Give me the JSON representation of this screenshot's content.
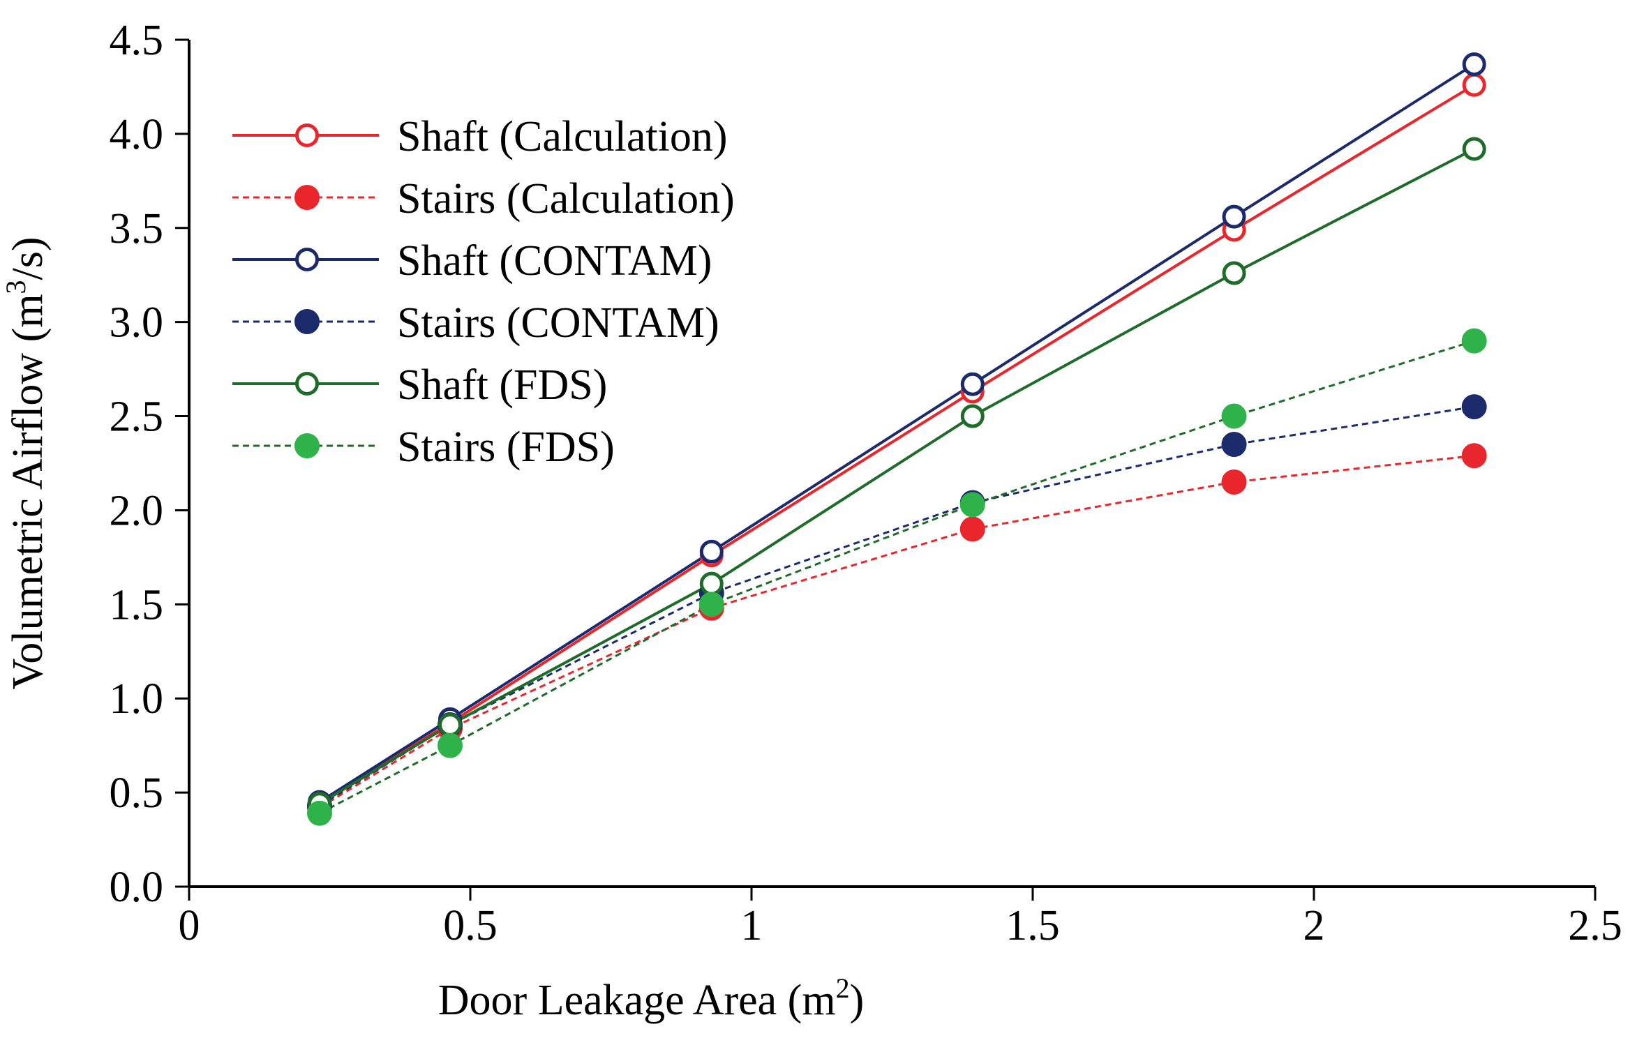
{
  "chart_data": {
    "type": "line",
    "title": "",
    "xlabel": "Door Leakage Area (m",
    "xlabel_sup": "2",
    "xlabel_end": ")",
    "ylabel": "Volumetric Airflow (m",
    "ylabel_sup": "3",
    "ylabel_end": "/s)",
    "xlim": [
      0,
      2.5
    ],
    "ylim": [
      0,
      4.5
    ],
    "xticks": [
      0,
      0.5,
      1,
      1.5,
      2,
      2.5
    ],
    "xtick_labels": [
      "0",
      "0.5",
      "1",
      "1.5",
      "2",
      "2.5"
    ],
    "yticks": [
      0,
      0.5,
      1,
      1.5,
      2,
      2.5,
      3,
      3.5,
      4,
      4.5
    ],
    "ytick_labels": [
      "0.0",
      "0.5",
      "1.0",
      "1.5",
      "2.0",
      "2.5",
      "3.0",
      "3.5",
      "4.0",
      "4.5"
    ],
    "grid": false,
    "legend_position": "top-left",
    "x": [
      0.232,
      0.464,
      0.929,
      1.393,
      1.858,
      2.285
    ],
    "series": [
      {
        "name": "Shaft (Calculation)",
        "color": "#e8262c",
        "dashed": false,
        "filled": false,
        "values": [
          0.44,
          0.87,
          1.76,
          2.63,
          3.49,
          4.26
        ]
      },
      {
        "name": "Stairs (Calculation)",
        "color": "#e8262c",
        "dashed": true,
        "filled": true,
        "values": [
          0.42,
          0.84,
          1.48,
          1.9,
          2.15,
          2.29
        ]
      },
      {
        "name": "Shaft (CONTAM)",
        "color": "#1b2a6b",
        "dashed": false,
        "filled": false,
        "values": [
          0.45,
          0.89,
          1.78,
          2.67,
          3.56,
          4.37
        ]
      },
      {
        "name": "Stairs (CONTAM)",
        "color": "#1b2a6b",
        "dashed": true,
        "filled": true,
        "values": [
          0.43,
          0.86,
          1.56,
          2.04,
          2.35,
          2.55
        ]
      },
      {
        "name": "Shaft (FDS)",
        "color": "#1f6b2a",
        "dashed": false,
        "filled": false,
        "values": [
          0.44,
          0.86,
          1.61,
          2.5,
          3.26,
          3.92
        ]
      },
      {
        "name": "Stairs (FDS)",
        "color": "#2fb24a",
        "line_color": "#1f6b2a",
        "dashed": true,
        "filled": true,
        "values": [
          0.39,
          0.75,
          1.5,
          2.03,
          2.5,
          2.9
        ]
      }
    ]
  }
}
